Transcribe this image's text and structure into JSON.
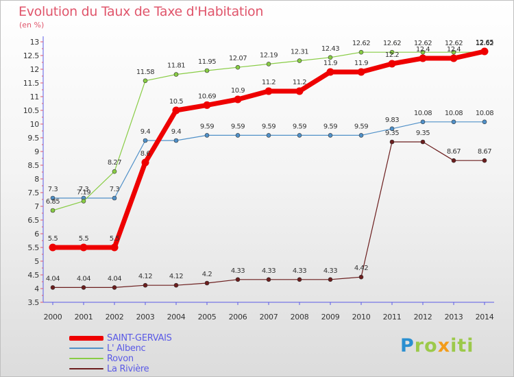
{
  "header": {
    "title": "Evolution du Taux de Taxe d'Habitation",
    "subtitle": "(en %)"
  },
  "brand": {
    "logo_text": "Proxiti"
  },
  "colors": {
    "axis": "#5a5ae6",
    "tick": "#e0556b",
    "grid": "#d4d4d4",
    "title": "#e0556b",
    "logo_p": "#2a8fd0",
    "logo_rest": "#9cc94a"
  },
  "chart_data": {
    "type": "line",
    "title": "Evolution du Taux de Taxe d'Habitation",
    "ylabel": "(en %)",
    "xlabel": "",
    "x": [
      "2000",
      "2001",
      "2002",
      "2003",
      "2004",
      "2005",
      "2006",
      "2007",
      "2008",
      "2009",
      "2010",
      "2011",
      "2012",
      "2013",
      "2014"
    ],
    "ylim": [
      3.5,
      13
    ],
    "yticks": [
      "3.5",
      "4",
      "4.5",
      "5",
      "5.5",
      "6",
      "6.5",
      "7",
      "7.5",
      "8",
      "8.5",
      "9",
      "9.5",
      "10",
      "10.5",
      "11",
      "11.5",
      "12",
      "12.5",
      "13"
    ],
    "grid": false,
    "legend_position": "bottom-left",
    "series": [
      {
        "name": "SAINT-GERVAIS",
        "color": "#ee0000",
        "values": [
          5.5,
          5.5,
          5.5,
          8.6,
          10.5,
          10.69,
          10.9,
          11.2,
          11.2,
          11.9,
          11.9,
          12.2,
          12.4,
          12.4,
          12.65
        ],
        "labels": [
          "5.5",
          "5.5",
          "5.5",
          "8.6",
          "10.5",
          "10.69",
          "10.9",
          "11.2",
          "11.2",
          "11.9",
          "11.9",
          "12.2",
          "12.4",
          "12.4",
          "12.65"
        ]
      },
      {
        "name": "L' Albenc",
        "color": "#4f90c8",
        "values": [
          7.3,
          7.3,
          7.3,
          9.4,
          9.4,
          9.59,
          9.59,
          9.59,
          9.59,
          9.59,
          9.59,
          9.83,
          10.08,
          10.08,
          10.08
        ],
        "labels": [
          "7.3",
          "7.3",
          "7.3",
          "9.4",
          "9.4",
          "9.59",
          "9.59",
          "9.59",
          "9.59",
          "9.59",
          "9.59",
          "9.83",
          "10.08",
          "10.08",
          "10.08"
        ]
      },
      {
        "name": "Rovon",
        "color": "#88cc44",
        "values": [
          6.85,
          7.19,
          8.27,
          11.58,
          11.81,
          11.95,
          12.07,
          12.19,
          12.31,
          12.43,
          12.62,
          12.62,
          12.62,
          12.62,
          12.62
        ],
        "labels": [
          "6.85",
          "7.19",
          "8.27",
          "11.58",
          "11.81",
          "11.95",
          "12.07",
          "12.19",
          "12.31",
          "12.43",
          "12.62",
          "12.62",
          "12.62",
          "12.62",
          "12.62"
        ]
      },
      {
        "name": "La Rivière",
        "color": "#6b1d1d",
        "values": [
          4.04,
          4.04,
          4.04,
          4.12,
          4.12,
          4.2,
          4.33,
          4.33,
          4.33,
          4.33,
          4.42,
          9.35,
          9.35,
          8.67,
          8.67
        ],
        "labels": [
          "4.04",
          "4.04",
          "4.04",
          "4.12",
          "4.12",
          "4.2",
          "4.33",
          "4.33",
          "4.33",
          "4.33",
          "4.42",
          "9.35",
          "9.35",
          "8.67",
          "8.67"
        ]
      }
    ]
  }
}
